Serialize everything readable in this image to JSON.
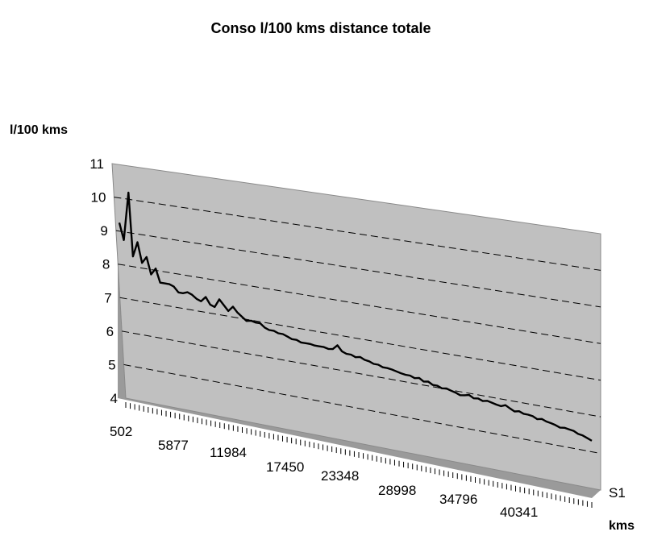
{
  "chart_data": {
    "type": "line",
    "title": "Conso l/100 kms distance totale",
    "ylabel": "l/100 kms",
    "xlabel": "kms",
    "series_label": "S1",
    "ylim": [
      4,
      11
    ],
    "yticks": [
      4,
      5,
      6,
      7,
      8,
      9,
      10,
      11
    ],
    "xtick_labels": [
      "502",
      "5877",
      "11984",
      "17450",
      "23348",
      "28998",
      "34796",
      "40341"
    ],
    "grid": true,
    "colors": {
      "wall": "#c0c0c0",
      "floor": "#9a9a9a",
      "line": "#000000",
      "grid": "#000000"
    },
    "series": [
      {
        "name": "S1",
        "values": [
          9.25,
          8.75,
          10.2,
          8.3,
          8.75,
          8.15,
          8.35,
          7.85,
          8.05,
          7.65,
          7.65,
          7.65,
          7.6,
          7.45,
          7.45,
          7.5,
          7.45,
          7.35,
          7.3,
          7.45,
          7.25,
          7.2,
          7.45,
          7.3,
          7.15,
          7.3,
          7.15,
          7.05,
          6.95,
          6.98,
          6.95,
          6.95,
          6.85,
          6.8,
          6.8,
          6.75,
          6.75,
          6.7,
          6.65,
          6.65,
          6.6,
          6.6,
          6.6,
          6.58,
          6.58,
          6.58,
          6.55,
          6.57,
          6.7,
          6.55,
          6.5,
          6.5,
          6.45,
          6.48,
          6.42,
          6.4,
          6.35,
          6.35,
          6.3,
          6.3,
          6.28,
          6.25,
          6.22,
          6.2,
          6.2,
          6.15,
          6.18,
          6.1,
          6.12,
          6.05,
          6.05,
          6.0,
          6.02,
          5.98,
          5.95,
          5.9,
          5.92,
          5.95,
          5.88,
          5.9,
          5.85,
          5.88,
          5.85,
          5.82,
          5.8,
          5.85,
          5.78,
          5.72,
          5.75,
          5.7,
          5.7,
          5.68,
          5.62,
          5.65,
          5.6,
          5.58,
          5.55,
          5.5,
          5.52,
          5.5,
          5.48,
          5.42,
          5.4,
          5.35,
          5.3
        ]
      }
    ]
  }
}
